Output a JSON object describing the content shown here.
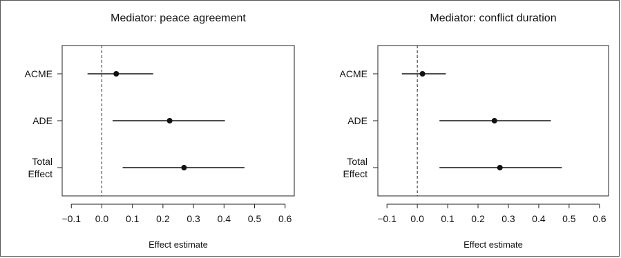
{
  "chart_data": [
    {
      "type": "dot-and-whisker",
      "title": "Mediator: peace agreement",
      "xlabel": "Effect estimate",
      "xlim": [
        -0.13,
        0.63
      ],
      "xticks": [
        -0.1,
        0.0,
        0.1,
        0.2,
        0.3,
        0.4,
        0.5,
        0.6
      ],
      "xtick_labels": [
        "−0.1",
        "0.0",
        "0.1",
        "0.2",
        "0.3",
        "0.4",
        "0.5",
        "0.6"
      ],
      "reference_line": 0,
      "categories": [
        [
          "ACME"
        ],
        [
          "ADE"
        ],
        [
          "Total",
          "Effect"
        ]
      ],
      "estimates": [
        0.047,
        0.222,
        0.269
      ],
      "lower": [
        -0.047,
        0.035,
        0.068
      ],
      "upper": [
        0.168,
        0.403,
        0.467
      ]
    },
    {
      "type": "dot-and-whisker",
      "title": "Mediator: conflict duration",
      "xlabel": "Effect estimate",
      "xlim": [
        -0.13,
        0.63
      ],
      "xticks": [
        -0.1,
        0.0,
        0.1,
        0.2,
        0.3,
        0.4,
        0.5,
        0.6
      ],
      "xtick_labels": [
        "−0.1",
        "0.0",
        "0.1",
        "0.2",
        "0.3",
        "0.4",
        "0.5",
        "0.6"
      ],
      "reference_line": 0,
      "categories": [
        [
          "ACME"
        ],
        [
          "ADE"
        ],
        [
          "Total",
          "Effect"
        ]
      ],
      "estimates": [
        0.017,
        0.254,
        0.272
      ],
      "lower": [
        -0.051,
        0.073,
        0.073
      ],
      "upper": [
        0.094,
        0.44,
        0.476
      ]
    }
  ]
}
